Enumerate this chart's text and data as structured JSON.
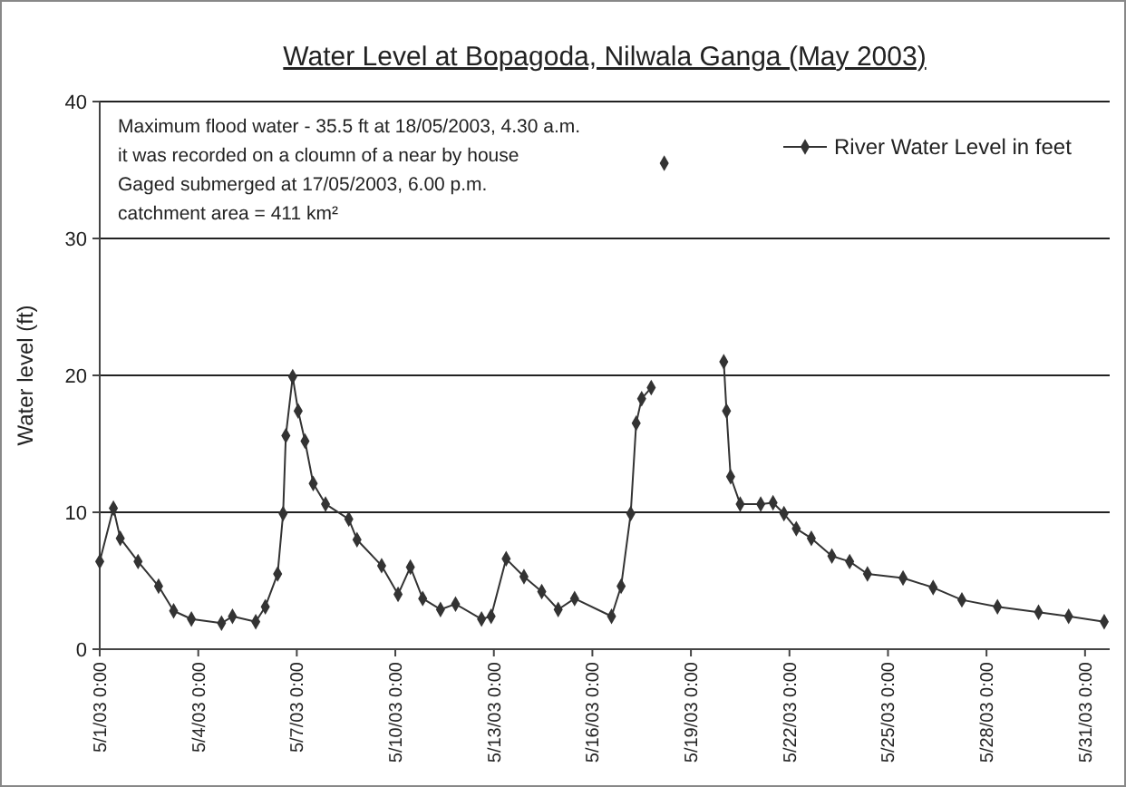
{
  "chart_data": {
    "type": "line",
    "title": "Water Level at Bopagoda, Nilwala Ganga (May 2003)",
    "ylabel": "Water level (ft)",
    "annotations": [
      "Maximum flood water - 35.5 ft at 18/05/2003,  4.30 a.m.",
      "it was recorded on a cloumn of a near by house",
      "Gaged submerged at 17/05/2003,  6.00 p.m.",
      "catchment area = 411 km²"
    ],
    "x": [
      "2003-05-01T00:00",
      "2003-05-01T10:00",
      "2003-05-01T15:00",
      "2003-05-02T04:00",
      "2003-05-02T19:00",
      "2003-05-03T06:00",
      "2003-05-03T19:00",
      "2003-05-04T17:00",
      "2003-05-05T01:00",
      "2003-05-05T18:00",
      "2003-05-06T01:00",
      "2003-05-06T10:00",
      "2003-05-06T14:00",
      "2003-05-06T16:00",
      "2003-05-06T21:00",
      "2003-05-07T01:00",
      "2003-05-07T06:00",
      "2003-05-07T12:00",
      "2003-05-07T21:00",
      "2003-05-08T14:00",
      "2003-05-08T20:00",
      "2003-05-09T14:00",
      "2003-05-10T02:00",
      "2003-05-10T11:00",
      "2003-05-10T20:00",
      "2003-05-11T09:00",
      "2003-05-11T20:00",
      "2003-05-12T15:00",
      "2003-05-12T22:00",
      "2003-05-13T09:00",
      "2003-05-13T22:00",
      "2003-05-14T11:00",
      "2003-05-14T23:00",
      "2003-05-15T11:00",
      "2003-05-16T14:00",
      "2003-05-16T21:00",
      "2003-05-17T04:00",
      "2003-05-17T08:00",
      "2003-05-17T12:00",
      "2003-05-17T19:00",
      "2003-05-18T00:00",
      "2003-05-18T04:30",
      "2003-05-19T12:00",
      "2003-05-20T00:00",
      "2003-05-20T02:00",
      "2003-05-20T05:00",
      "2003-05-20T12:00",
      "2003-05-21T03:00",
      "2003-05-21T12:00",
      "2003-05-21T20:00",
      "2003-05-22T05:00",
      "2003-05-22T16:00",
      "2003-05-23T07:00",
      "2003-05-23T20:00",
      "2003-05-24T09:00",
      "2003-05-25T11:00",
      "2003-05-26T09:00",
      "2003-05-27T06:00",
      "2003-05-28T08:00",
      "2003-05-29T14:00",
      "2003-05-30T12:00",
      "2003-05-31T14:00"
    ],
    "series": [
      {
        "name": "River Water Level in feet",
        "color": "#333333",
        "values": [
          6.4,
          10.3,
          8.1,
          6.4,
          4.6,
          2.8,
          2.2,
          1.9,
          2.4,
          2.0,
          3.1,
          5.5,
          9.9,
          15.6,
          19.9,
          17.4,
          15.2,
          12.1,
          10.6,
          9.5,
          8.0,
          6.1,
          4.0,
          6.0,
          3.7,
          2.9,
          3.3,
          2.2,
          2.4,
          6.6,
          5.3,
          4.2,
          2.9,
          3.7,
          2.4,
          4.6,
          9.9,
          16.5,
          18.3,
          19.1,
          null,
          35.5,
          null,
          21.0,
          17.4,
          12.6,
          10.6,
          10.6,
          10.7,
          9.9,
          8.8,
          8.1,
          6.8,
          6.4,
          5.5,
          5.2,
          4.5,
          3.6,
          3.1,
          2.7,
          2.4,
          2.0
        ]
      }
    ],
    "xlim": [
      "2003-05-01T00:00",
      "2003-05-31T18:00"
    ],
    "xticks": [
      {
        "value": "2003-05-01T00:00",
        "label": "5/1/03 0:00"
      },
      {
        "value": "2003-05-04T00:00",
        "label": "5/4/03 0:00"
      },
      {
        "value": "2003-05-07T00:00",
        "label": "5/7/03 0:00"
      },
      {
        "value": "2003-05-10T00:00",
        "label": "5/10/03 0:00"
      },
      {
        "value": "2003-05-13T00:00",
        "label": "5/13/03 0:00"
      },
      {
        "value": "2003-05-16T00:00",
        "label": "5/16/03 0:00"
      },
      {
        "value": "2003-05-19T00:00",
        "label": "5/19/03 0:00"
      },
      {
        "value": "2003-05-22T00:00",
        "label": "5/22/03 0:00"
      },
      {
        "value": "2003-05-25T00:00",
        "label": "5/25/03 0:00"
      },
      {
        "value": "2003-05-28T00:00",
        "label": "5/28/03 0:00"
      },
      {
        "value": "2003-05-31T00:00",
        "label": "5/31/03 0:00"
      }
    ],
    "ylim": [
      0,
      40
    ],
    "yticks": [
      0,
      10,
      20,
      30,
      40
    ],
    "grid": "y",
    "legend": "top right",
    "marker": "diamond",
    "line_style": "solid"
  }
}
